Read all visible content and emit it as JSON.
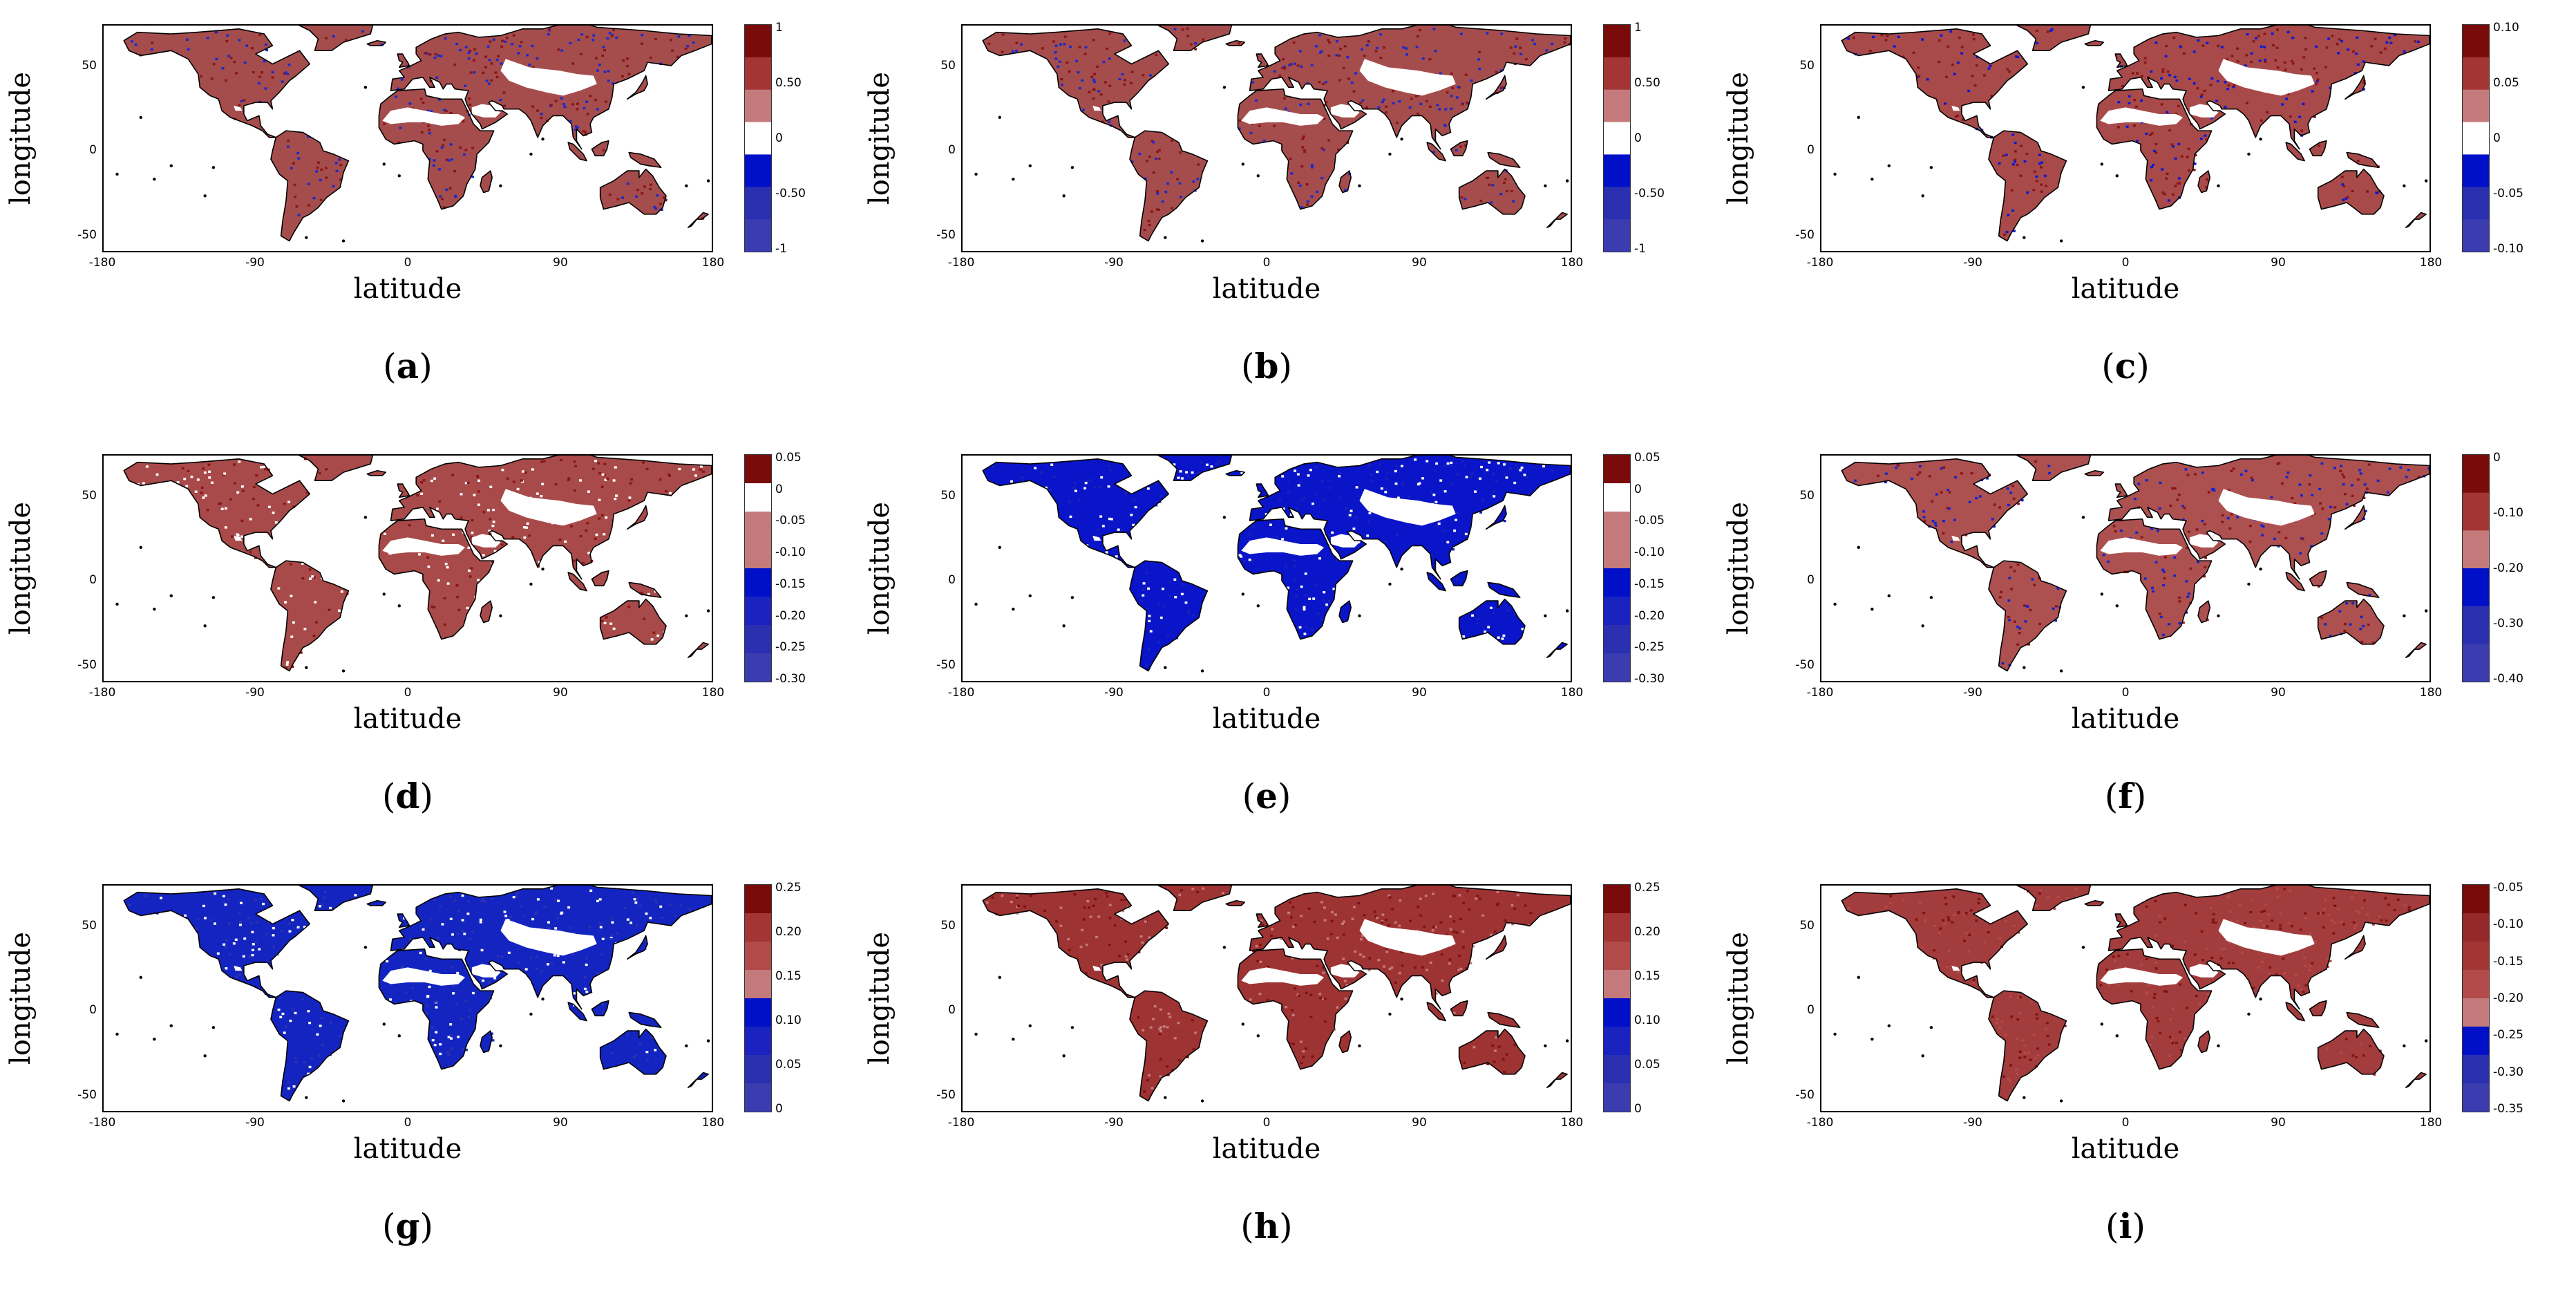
{
  "axes": {
    "xlabel": "latitude",
    "ylabel": "longitude",
    "xticks": [
      "-180",
      "-90",
      "0",
      "90",
      "180"
    ],
    "yticks": [
      "50",
      "0",
      "-50"
    ],
    "xrange": [
      -180,
      180
    ],
    "yrange": [
      -60,
      75
    ]
  },
  "colors": {
    "dark_red": "#8b0d0d",
    "mid_red": "#a84545",
    "light_red": "#c07070",
    "blue": "#0010c8",
    "mid_blue": "#2a32b4",
    "pale": "#ffffff",
    "coast": "#000000"
  },
  "panels": [
    {
      "id": "a",
      "caption_letter": "a",
      "land": "#a54d4d",
      "accent": "#8a1616",
      "speck": "#1a2acc",
      "colorbar": {
        "labels": [
          "1",
          "0.50",
          "0",
          "-0.50",
          "-1"
        ],
        "bands": [
          "#7a0b0b",
          "#a33535",
          "#c47a7a",
          "#ffffff",
          "#0010c8",
          "#2a30b0",
          "#3a3cb0"
        ]
      }
    },
    {
      "id": "b",
      "caption_letter": "b",
      "land": "#a54d4d",
      "accent": "#8a1616",
      "speck": "#1a2acc",
      "colorbar": {
        "labels": [
          "1",
          "0.50",
          "0",
          "-0.50",
          "-1"
        ],
        "bands": [
          "#7a0b0b",
          "#a33535",
          "#c47a7a",
          "#ffffff",
          "#0010c8",
          "#2a30b0",
          "#3a3cb0"
        ]
      }
    },
    {
      "id": "c",
      "caption_letter": "c",
      "land": "#a84a4a",
      "accent": "#8a1616",
      "speck": "#0a18d8",
      "colorbar": {
        "labels": [
          "0.10",
          "0.05",
          "0",
          "-0.05",
          "-0.10"
        ],
        "bands": [
          "#7a0b0b",
          "#a33535",
          "#c47a7a",
          "#ffffff",
          "#0010c8",
          "#2a30b0",
          "#3a3cb0"
        ]
      }
    },
    {
      "id": "d",
      "caption_letter": "d",
      "land": "#a84a4a",
      "accent": "#8a1616",
      "speck": "#ffffff",
      "colorbar": {
        "labels": [
          "0.05",
          "0",
          "-0.05",
          "-0.10",
          "-0.15",
          "-0.20",
          "-0.25",
          "-0.30"
        ],
        "bands": [
          "#7a0b0b",
          "#ffffff",
          "#c47a7a",
          "#c47a7a",
          "#0010c8",
          "#1a22c0",
          "#2a30b0",
          "#3a3cb0"
        ]
      }
    },
    {
      "id": "e",
      "caption_letter": "e",
      "land": "#0a14c8",
      "accent": "#1a22b8",
      "speck": "#ffffff",
      "colorbar": {
        "labels": [
          "0.05",
          "0",
          "-0.05",
          "-0.10",
          "-0.15",
          "-0.20",
          "-0.25",
          "-0.30"
        ],
        "bands": [
          "#7a0b0b",
          "#ffffff",
          "#c47a7a",
          "#c47a7a",
          "#0010c8",
          "#1a22c0",
          "#2a30b0",
          "#3a3cb0"
        ]
      }
    },
    {
      "id": "f",
      "caption_letter": "f",
      "land": "#ad5050",
      "accent": "#8a1616",
      "speck": "#1424cc",
      "colorbar": {
        "labels": [
          "0",
          "-0.10",
          "-0.20",
          "-0.30",
          "-0.40"
        ],
        "bands": [
          "#7a0b0b",
          "#a33535",
          "#c47a7a",
          "#0010c8",
          "#2a30b0",
          "#3a3cb0"
        ]
      }
    },
    {
      "id": "g",
      "caption_letter": "g",
      "land": "#1424c0",
      "accent": "#2a32b0",
      "speck": "#ffffff",
      "colorbar": {
        "labels": [
          "0.25",
          "0.20",
          "0.15",
          "0.10",
          "0.05",
          "0"
        ],
        "bands": [
          "#7a0b0b",
          "#a33535",
          "#b24a4a",
          "#c47a7a",
          "#0010c8",
          "#1a22c0",
          "#2a30b0",
          "#3a3cb0"
        ]
      }
    },
    {
      "id": "h",
      "caption_letter": "h",
      "land": "#9e3333",
      "accent": "#7e1212",
      "speck": "#c47a7a",
      "colorbar": {
        "labels": [
          "0.25",
          "0.20",
          "0.15",
          "0.10",
          "0.05",
          "0"
        ],
        "bands": [
          "#7a0b0b",
          "#a33535",
          "#b24a4a",
          "#c47a7a",
          "#0010c8",
          "#1a22c0",
          "#2a30b0",
          "#3a3cb0"
        ]
      }
    },
    {
      "id": "i",
      "caption_letter": "i",
      "land": "#a33c3c",
      "accent": "#801212",
      "speck": "#b24a4a",
      "colorbar": {
        "labels": [
          "-0.05",
          "-0.10",
          "-0.15",
          "-0.20",
          "-0.25",
          "-0.30",
          "-0.35"
        ],
        "bands": [
          "#7a0b0b",
          "#952828",
          "#a33535",
          "#b24a4a",
          "#c47a7a",
          "#0010c8",
          "#2a30b0",
          "#3a3cb0"
        ]
      }
    }
  ]
}
